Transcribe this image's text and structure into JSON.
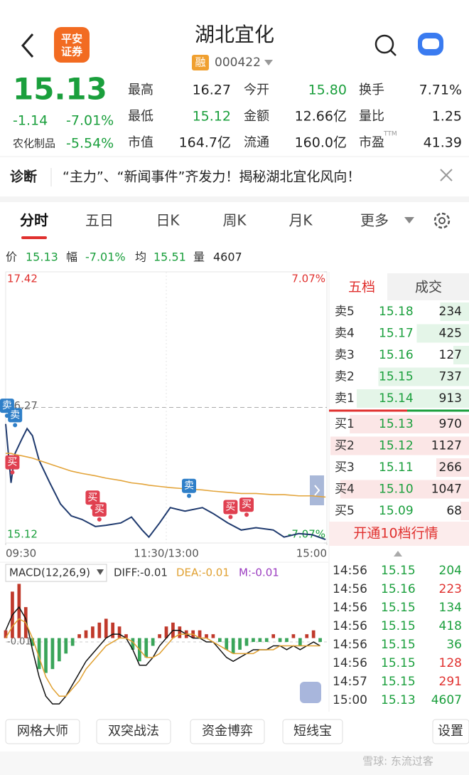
{
  "header": {
    "title": "湖北宜化",
    "tag": "融",
    "code": "000422",
    "logo": [
      "平安",
      "证券"
    ]
  },
  "quote": {
    "price": "15.13",
    "change": "-1.14",
    "change_pct": "-7.01%",
    "sector": "农化制品",
    "sector_pct": "-5.54%",
    "stats": [
      [
        "最高",
        "16.27",
        "今开",
        "15.80",
        "换手",
        "7.71%"
      ],
      [
        "最低",
        "15.12",
        "金额",
        "12.66亿",
        "量比",
        "1.25"
      ],
      [
        "市值",
        "164.7亿",
        "流通",
        "160.0亿",
        "市盈",
        "41.39"
      ]
    ],
    "ttm": "TTM"
  },
  "diagnosis": {
    "label": "诊断",
    "text": "“主力”、“新闻事件”齐发力！揭秘湖北宜化风向！"
  },
  "tabs": [
    "分时",
    "五日",
    "日K",
    "周K",
    "月K",
    "更多"
  ],
  "info": [
    [
      "价",
      "15.13"
    ],
    [
      "幅",
      "-7.01%"
    ],
    [
      "均",
      "15.51"
    ],
    [
      "量",
      "4607"
    ]
  ],
  "chart_data": [
    {
      "type": "line",
      "x": [
        0,
        4,
        7,
        12,
        16,
        20,
        25,
        33,
        41,
        49,
        57,
        67,
        75,
        86,
        94,
        102,
        107,
        115,
        123,
        134,
        147,
        155,
        166,
        176,
        187,
        200,
        208,
        219,
        229,
        239
      ],
      "series": [
        {
          "color": "#1f3a6e",
          "values": [
            16.13,
            15.63,
            15.88,
            16.0,
            16.09,
            16.03,
            15.82,
            15.63,
            15.45,
            15.35,
            15.32,
            15.26,
            15.27,
            15.29,
            15.34,
            15.23,
            15.17,
            15.29,
            15.42,
            15.39,
            15.42,
            15.37,
            15.29,
            15.23,
            15.25,
            15.23,
            15.17,
            15.2,
            15.19,
            15.15
          ]
        },
        {
          "color": "#e3a43a",
          "values": [
            15.88,
            15.88,
            15.87,
            15.86,
            15.85,
            15.84,
            15.82,
            15.79,
            15.76,
            15.73,
            15.71,
            15.69,
            15.67,
            15.65,
            15.63,
            15.62,
            15.61,
            15.6,
            15.59,
            15.58,
            15.57,
            15.56,
            15.55,
            15.54,
            15.54,
            15.53,
            15.53,
            15.52,
            15.52,
            15.51
          ]
        }
      ],
      "xlim": [
        0,
        240
      ],
      "xticks": [
        {
          "value": 0,
          "label": "09:30"
        },
        {
          "value": 120,
          "label": "11:30/13:00"
        },
        {
          "value": 240,
          "label": "15:00"
        }
      ],
      "ylim": [
        15.12,
        17.42
      ],
      "yticks": [
        15.12,
        16.27,
        17.42
      ],
      "y2lim": [
        -7.07,
        7.07
      ],
      "y2ticks": [
        {
          "value": -7.07,
          "label": "-7.07%"
        },
        {
          "value": 7.07,
          "label": "7.07%"
        }
      ],
      "annotations": [
        {
          "label": "卖",
          "x": 1,
          "value": 16.2,
          "color": "#2f7fc8"
        },
        {
          "label": "卖",
          "x": 7,
          "value": 16.12,
          "color": "#2f7fc8"
        },
        {
          "label": "买",
          "x": 5,
          "value": 15.72,
          "color": "#e04050"
        },
        {
          "label": "买",
          "x": 65,
          "value": 15.42,
          "color": "#e04050"
        },
        {
          "label": "买",
          "x": 70,
          "value": 15.32,
          "color": "#e04050"
        },
        {
          "label": "卖",
          "x": 137,
          "value": 15.52,
          "color": "#2f7fc8"
        },
        {
          "label": "买",
          "x": 168,
          "value": 15.34,
          "color": "#e04050"
        },
        {
          "label": "买",
          "x": 180,
          "value": 15.36,
          "color": "#e04050"
        }
      ]
    },
    {
      "type": "macd",
      "title": "MACD(12,26,9)",
      "x": [
        0,
        5,
        10,
        15,
        20,
        25,
        30,
        35,
        40,
        45,
        50,
        55,
        60,
        65,
        70,
        75,
        80,
        85,
        90,
        95,
        100,
        105,
        110,
        115,
        120,
        125,
        130,
        135,
        140,
        145,
        150,
        155,
        160,
        165,
        170,
        175,
        180,
        185,
        190,
        195,
        200,
        205,
        210,
        215,
        220,
        225,
        230,
        235
      ],
      "histogram": {
        "label": "M:-0.01",
        "color": "#9b3cc0",
        "up_color": "#c0392b",
        "down_color": "#3aa55a",
        "values": [
          0.02,
          0.12,
          0.14,
          0.08,
          -0.02,
          -0.08,
          -0.09,
          -0.08,
          -0.06,
          -0.04,
          -0.02,
          0.01,
          0.02,
          0.03,
          0.04,
          0.05,
          0.04,
          0.03,
          0.01,
          -0.03,
          -0.06,
          -0.05,
          -0.02,
          0.01,
          0.03,
          0.04,
          0.03,
          0.02,
          0.02,
          0.02,
          0.01,
          0.01,
          -0.01,
          -0.03,
          -0.04,
          -0.03,
          -0.02,
          -0.01,
          -0.01,
          -0.01,
          0.01,
          -0.01,
          -0.01,
          0.01,
          -0.02,
          0.01,
          0.02,
          -0.01
        ]
      },
      "series": [
        {
          "label": "DIFF:-0.01",
          "color": "#111111",
          "values": [
            0.02,
            0.06,
            0.08,
            0.05,
            -0.03,
            -0.1,
            -0.15,
            -0.17,
            -0.17,
            -0.15,
            -0.12,
            -0.09,
            -0.06,
            -0.04,
            -0.02,
            0,
            0.01,
            0.01,
            0,
            -0.03,
            -0.07,
            -0.07,
            -0.05,
            -0.02,
            0,
            0.02,
            0.02,
            0.01,
            0,
            0,
            -0.01,
            -0.01,
            -0.03,
            -0.05,
            -0.06,
            -0.05,
            -0.04,
            -0.03,
            -0.03,
            -0.03,
            -0.02,
            -0.02,
            -0.03,
            -0.02,
            -0.03,
            -0.02,
            -0.01,
            -0.02
          ]
        },
        {
          "label": "DEA:-0.01",
          "color": "#e0a030",
          "values": [
            0,
            0.03,
            0.05,
            0.04,
            0,
            -0.05,
            -0.1,
            -0.13,
            -0.15,
            -0.15,
            -0.13,
            -0.11,
            -0.08,
            -0.06,
            -0.04,
            -0.02,
            -0.01,
            0,
            0,
            -0.01,
            -0.03,
            -0.05,
            -0.05,
            -0.04,
            -0.02,
            0,
            0.01,
            0.01,
            0.01,
            0,
            0,
            -0.01,
            -0.02,
            -0.03,
            -0.04,
            -0.04,
            -0.04,
            -0.04,
            -0.03,
            -0.03,
            -0.03,
            -0.02,
            -0.02,
            -0.02,
            -0.02,
            -0.02,
            -0.02,
            -0.02
          ]
        }
      ],
      "xlim": [
        0,
        240
      ],
      "ylim": [
        -0.19,
        0.15
      ],
      "yticks": [
        -0.01
      ]
    }
  ],
  "order_book": {
    "tabs": [
      "五档",
      "成交"
    ],
    "asks": [
      {
        "label": "卖5",
        "price": "15.18",
        "volume": 234
      },
      {
        "label": "卖4",
        "price": "15.17",
        "volume": 425
      },
      {
        "label": "卖3",
        "price": "15.16",
        "volume": 127
      },
      {
        "label": "卖2",
        "price": "15.15",
        "volume": 737
      },
      {
        "label": "卖1",
        "price": "15.14",
        "volume": 913
      }
    ],
    "bids": [
      {
        "label": "买1",
        "price": "15.13",
        "volume": 970
      },
      {
        "label": "买2",
        "price": "15.12",
        "volume": 1127
      },
      {
        "label": "买3",
        "price": "15.11",
        "volume": 266
      },
      {
        "label": "买4",
        "price": "15.10",
        "volume": 1047
      },
      {
        "label": "买5",
        "price": "15.09",
        "volume": 68
      }
    ],
    "button": "开通10档行情"
  },
  "trades": [
    {
      "time": "14:56",
      "price": "15.15",
      "volume": 204,
      "color": "#1a9f3c"
    },
    {
      "time": "14:56",
      "price": "15.16",
      "volume": 223,
      "color": "#e0302e"
    },
    {
      "time": "14:56",
      "price": "15.15",
      "volume": 134,
      "color": "#1a9f3c"
    },
    {
      "time": "14:56",
      "price": "15.15",
      "volume": 418,
      "color": "#1a9f3c"
    },
    {
      "time": "14:56",
      "price": "15.15",
      "volume": 36,
      "color": "#1a9f3c"
    },
    {
      "time": "14:56",
      "price": "15.15",
      "volume": 128,
      "color": "#e0302e"
    },
    {
      "time": "14:57",
      "price": "15.15",
      "volume": 291,
      "color": "#e0302e"
    },
    {
      "time": "15:00",
      "price": "15.13",
      "volume": 4607,
      "color": "#1a9f3c"
    }
  ],
  "tools": [
    "网格大师",
    "双突战法",
    "资金博弈",
    "短线宝"
  ],
  "settings": "设置",
  "watermark": "雪球: 东流过客"
}
